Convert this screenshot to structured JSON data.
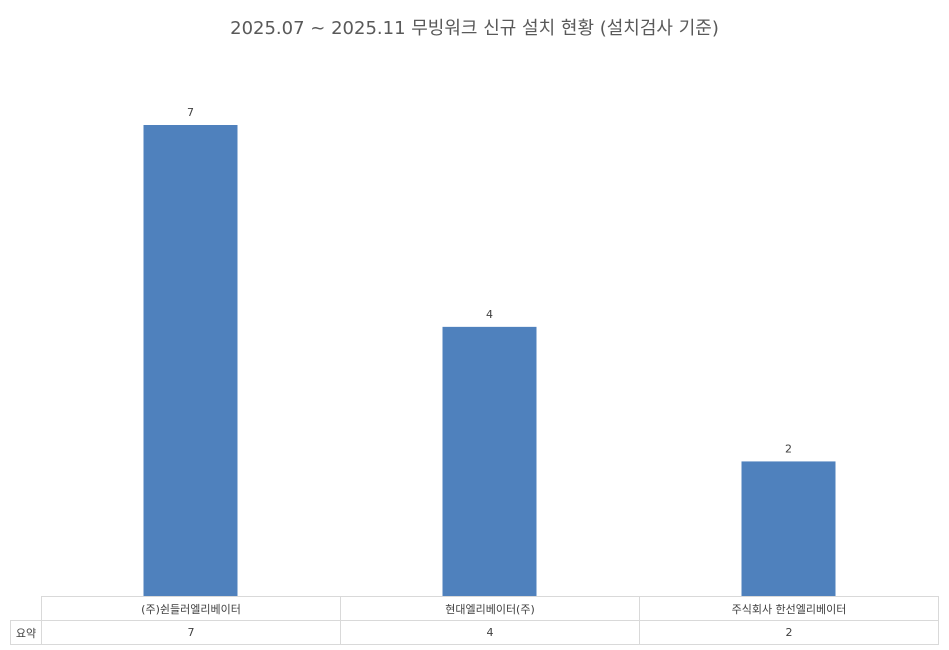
{
  "chart_data": {
    "type": "bar",
    "title": "2025.07 ~ 2025.11 무빙워크 신규 설치 현황 (설치검사 기준)",
    "categories": [
      "(주)쉰들러엘리베이터",
      "현대엘리베이터(주)",
      "주식회사 한선엘리베이터"
    ],
    "series": [
      {
        "name": "요약",
        "values": [
          7,
          4,
          2
        ]
      }
    ],
    "ylim": [
      0,
      7
    ],
    "grid": false,
    "data_table": true,
    "bar_color": "#4f81bd"
  }
}
